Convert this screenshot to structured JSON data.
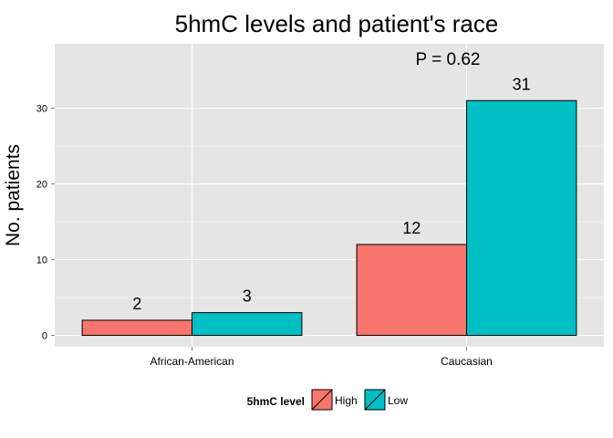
{
  "chart_data": {
    "type": "bar",
    "title": "5hmC levels and patient's race",
    "xlabel": "",
    "ylabel": "No. patients",
    "categories": [
      "African-American",
      "Caucasian"
    ],
    "series": [
      {
        "name": "High",
        "color": "#F8766D",
        "values": [
          2,
          12
        ]
      },
      {
        "name": "Low",
        "color": "#00BFC4",
        "values": [
          3,
          31
        ]
      }
    ],
    "data_labels": [
      "2",
      "12",
      "3",
      "31"
    ],
    "yticks": [
      0,
      10,
      20,
      30
    ],
    "ylim": [
      -1.5,
      38.5
    ],
    "annotation": "P = 0.62",
    "legend": {
      "title": "5hmC level",
      "position": "bottom"
    },
    "grid": true,
    "panel_background": "#E5E5E5"
  }
}
